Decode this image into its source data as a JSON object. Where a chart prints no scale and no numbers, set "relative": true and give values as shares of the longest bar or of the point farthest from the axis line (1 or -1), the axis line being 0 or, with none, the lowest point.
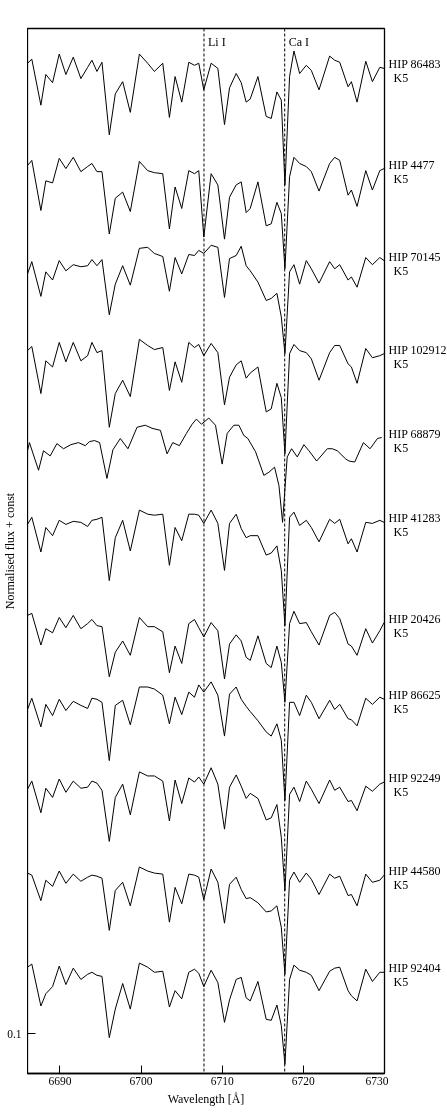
{
  "chart_data": {
    "type": "line",
    "xlabel": "Wavelength [Å]",
    "ylabel": "Normalised flux + const",
    "relative": true,
    "xlim": [
      6686,
      6730
    ],
    "xticks": [
      6690,
      6700,
      6710,
      6720,
      6730
    ],
    "annotations": [
      "0.1"
    ],
    "ref_lines": [
      {
        "axis": "x",
        "value": 6707.75,
        "label": "Li I",
        "color": "#000000",
        "line_style": "dashed"
      },
      {
        "axis": "x",
        "value": 6717.7,
        "label": "Ca I",
        "color": "#000000",
        "line_style": "dashed"
      }
    ],
    "x": [
      6686.0,
      6686.53,
      6687.65,
      6688.26,
      6689.09,
      6689.91,
      6690.73,
      6691.64,
      6692.58,
      6693.41,
      6693.94,
      6694.56,
      6695.18,
      6696.08,
      6696.82,
      6697.73,
      6698.67,
      6699.79,
      6700.81,
      6701.64,
      6702.67,
      6703.49,
      6704.19,
      6705.01,
      6705.88,
      6706.58,
      6707.11,
      6707.73,
      6708.63,
      6709.46,
      6710.28,
      6710.9,
      6711.72,
      6712.34,
      6712.95,
      6713.45,
      6714.4,
      6715.42,
      6716.04,
      6716.74,
      6717.28,
      6717.73,
      6718.3,
      6718.84,
      6719.54,
      6720.36,
      6720.98,
      6721.93,
      6723.24,
      6723.86,
      6724.48,
      6725.51,
      6725.92,
      6726.62,
      6727.69,
      6728.51,
      6729.42,
      6729.95
    ],
    "series": [
      {
        "name": "HIP 86483\nK5",
        "color": "#000000",
        "values": [
          0.988,
          0.992,
          0.947,
          0.977,
          0.969,
          0.997,
          0.977,
          0.994,
          0.973,
          0.984,
          0.991,
          0.98,
          0.989,
          0.918,
          0.958,
          0.97,
          0.94,
          0.997,
          0.988,
          0.98,
          0.988,
          0.935,
          0.975,
          0.95,
          0.989,
          0.986,
          0.988,
          0.962,
          0.988,
          0.983,
          0.928,
          0.964,
          0.978,
          0.969,
          0.95,
          0.953,
          0.975,
          0.936,
          0.934,
          0.96,
          0.952,
          0.869,
          0.975,
          1.0,
          0.978,
          0.986,
          0.981,
          0.962,
          0.995,
          0.991,
          0.989,
          0.965,
          0.97,
          0.95,
          0.99,
          0.97,
          0.984,
          0.983
        ]
      },
      {
        "name": "HIP 4477\nK5",
        "color": "#000000",
        "values": [
          0.888,
          0.893,
          0.844,
          0.873,
          0.871,
          0.895,
          0.885,
          0.896,
          0.882,
          0.887,
          0.89,
          0.882,
          0.882,
          0.821,
          0.856,
          0.862,
          0.843,
          0.892,
          0.883,
          0.881,
          0.88,
          0.826,
          0.867,
          0.846,
          0.883,
          0.88,
          0.883,
          0.818,
          0.88,
          0.869,
          0.816,
          0.857,
          0.869,
          0.872,
          0.842,
          0.846,
          0.872,
          0.829,
          0.831,
          0.852,
          0.841,
          0.787,
          0.877,
          0.896,
          0.89,
          0.887,
          0.882,
          0.863,
          0.89,
          0.896,
          0.893,
          0.859,
          0.864,
          0.848,
          0.883,
          0.864,
          0.883,
          0.885
        ]
      },
      {
        "name": "HIP 70145\nK5",
        "color": "#000000",
        "values": [
          0.782,
          0.794,
          0.76,
          0.784,
          0.776,
          0.795,
          0.785,
          0.791,
          0.789,
          0.79,
          0.796,
          0.79,
          0.796,
          0.742,
          0.772,
          0.79,
          0.771,
          0.807,
          0.808,
          0.802,
          0.799,
          0.765,
          0.798,
          0.782,
          0.801,
          0.8,
          0.805,
          0.802,
          0.81,
          0.808,
          0.759,
          0.797,
          0.8,
          0.809,
          0.79,
          0.785,
          0.774,
          0.756,
          0.758,
          0.763,
          0.74,
          0.704,
          0.784,
          0.791,
          0.772,
          0.795,
          0.787,
          0.773,
          0.794,
          0.787,
          0.791,
          0.776,
          0.779,
          0.769,
          0.798,
          0.791,
          0.798,
          0.795
        ]
      },
      {
        "name": "HIP 102912\nK5",
        "color": "#000000",
        "values": [
          0.707,
          0.711,
          0.665,
          0.697,
          0.691,
          0.715,
          0.696,
          0.715,
          0.697,
          0.702,
          0.715,
          0.705,
          0.707,
          0.632,
          0.665,
          0.678,
          0.662,
          0.718,
          0.712,
          0.708,
          0.71,
          0.668,
          0.696,
          0.676,
          0.715,
          0.71,
          0.713,
          0.702,
          0.714,
          0.705,
          0.654,
          0.681,
          0.693,
          0.697,
          0.68,
          0.685,
          0.691,
          0.647,
          0.65,
          0.675,
          0.661,
          0.606,
          0.704,
          0.713,
          0.707,
          0.705,
          0.699,
          0.678,
          0.705,
          0.712,
          0.712,
          0.694,
          0.691,
          0.675,
          0.709,
          0.7,
          0.702,
          0.704
        ]
      },
      {
        "name": "HIP 68879\nK5",
        "color": "#000000",
        "x": [
          6686.0,
          6686.24,
          6687.36,
          6687.97,
          6688.8,
          6689.62,
          6690.44,
          6691.35,
          6692.29,
          6693.12,
          6693.65,
          6694.27,
          6694.89,
          6695.79,
          6696.53,
          6697.44,
          6698.38,
          6699.5,
          6700.52,
          6701.35,
          6702.38,
          6703.2,
          6703.9,
          6704.72,
          6705.59,
          6706.29,
          6706.82,
          6707.44,
          6708.34,
          6709.17,
          6709.99,
          6710.61,
          6711.43,
          6712.05,
          6712.66,
          6713.16,
          6714.11,
          6715.13,
          6715.75,
          6716.45,
          6716.99,
          6717.44,
          6718.01,
          6718.55,
          6719.25,
          6720.07,
          6720.69,
          6721.64,
          6722.95,
          6723.57,
          6724.19,
          6725.22,
          6725.63,
          6726.33,
          6727.4,
          6728.22,
          6729.13,
          6729.66
        ],
        "values": [
          0.609,
          0.617,
          0.59,
          0.609,
          0.604,
          0.616,
          0.611,
          0.615,
          0.617,
          0.614,
          0.618,
          0.619,
          0.617,
          0.582,
          0.61,
          0.621,
          0.611,
          0.632,
          0.634,
          0.631,
          0.629,
          0.606,
          0.617,
          0.614,
          0.626,
          0.635,
          0.64,
          0.635,
          0.641,
          0.634,
          0.596,
          0.626,
          0.634,
          0.634,
          0.624,
          0.621,
          0.608,
          0.585,
          0.588,
          0.593,
          0.575,
          0.539,
          0.603,
          0.611,
          0.603,
          0.615,
          0.609,
          0.599,
          0.611,
          0.611,
          0.609,
          0.601,
          0.599,
          0.598,
          0.617,
          0.611,
          0.621,
          0.622
        ]
      },
      {
        "name": "HIP 41283\nK5",
        "color": "#000000",
        "values": [
          0.537,
          0.544,
          0.51,
          0.534,
          0.526,
          0.541,
          0.537,
          0.54,
          0.539,
          0.535,
          0.541,
          0.542,
          0.544,
          0.482,
          0.524,
          0.541,
          0.511,
          0.551,
          0.547,
          0.546,
          0.547,
          0.497,
          0.534,
          0.521,
          0.547,
          0.547,
          0.546,
          0.538,
          0.551,
          0.538,
          0.492,
          0.538,
          0.547,
          0.533,
          0.524,
          0.526,
          0.526,
          0.507,
          0.509,
          0.516,
          0.492,
          0.438,
          0.544,
          0.549,
          0.536,
          0.541,
          0.534,
          0.52,
          0.542,
          0.538,
          0.542,
          0.518,
          0.523,
          0.51,
          0.539,
          0.538,
          0.541,
          0.539
        ]
      },
      {
        "name": "HIP 20426\nK5",
        "color": "#000000",
        "values": [
          0.448,
          0.45,
          0.419,
          0.435,
          0.431,
          0.446,
          0.436,
          0.448,
          0.435,
          0.44,
          0.444,
          0.438,
          0.437,
          0.388,
          0.412,
          0.423,
          0.409,
          0.446,
          0.437,
          0.437,
          0.432,
          0.392,
          0.418,
          0.401,
          0.44,
          0.444,
          0.436,
          0.427,
          0.441,
          0.433,
          0.386,
          0.42,
          0.429,
          0.423,
          0.407,
          0.404,
          0.428,
          0.401,
          0.397,
          0.418,
          0.402,
          0.363,
          0.44,
          0.452,
          0.44,
          0.441,
          0.432,
          0.419,
          0.448,
          0.451,
          0.445,
          0.42,
          0.418,
          0.409,
          0.435,
          0.421,
          0.433,
          0.441
        ]
      },
      {
        "name": "HIP 86625\nK5",
        "color": "#000000",
        "values": [
          0.356,
          0.367,
          0.339,
          0.361,
          0.35,
          0.366,
          0.355,
          0.364,
          0.36,
          0.357,
          0.367,
          0.366,
          0.363,
          0.306,
          0.36,
          0.365,
          0.341,
          0.378,
          0.378,
          0.376,
          0.37,
          0.342,
          0.368,
          0.351,
          0.373,
          0.368,
          0.38,
          0.373,
          0.383,
          0.37,
          0.33,
          0.371,
          0.378,
          0.366,
          0.359,
          0.354,
          0.345,
          0.334,
          0.33,
          0.342,
          0.326,
          0.267,
          0.363,
          0.363,
          0.35,
          0.37,
          0.363,
          0.347,
          0.365,
          0.356,
          0.361,
          0.347,
          0.346,
          0.34,
          0.367,
          0.361,
          0.368,
          0.366
        ]
      },
      {
        "name": "HIP 92249\nK5",
        "color": "#000000",
        "values": [
          0.278,
          0.286,
          0.255,
          0.279,
          0.27,
          0.288,
          0.275,
          0.286,
          0.279,
          0.28,
          0.286,
          0.284,
          0.277,
          0.227,
          0.27,
          0.283,
          0.253,
          0.295,
          0.291,
          0.291,
          0.286,
          0.247,
          0.287,
          0.264,
          0.289,
          0.285,
          0.29,
          0.283,
          0.299,
          0.283,
          0.239,
          0.28,
          0.292,
          0.281,
          0.269,
          0.274,
          0.269,
          0.248,
          0.25,
          0.263,
          0.231,
          0.179,
          0.273,
          0.28,
          0.266,
          0.286,
          0.278,
          0.264,
          0.287,
          0.277,
          0.28,
          0.266,
          0.267,
          0.257,
          0.281,
          0.276,
          0.283,
          0.285
        ]
      },
      {
        "name": "HIP 44580\nK5",
        "color": "#000000",
        "values": [
          0.196,
          0.194,
          0.169,
          0.189,
          0.183,
          0.198,
          0.186,
          0.195,
          0.188,
          0.192,
          0.194,
          0.193,
          0.191,
          0.14,
          0.179,
          0.187,
          0.164,
          0.202,
          0.198,
          0.196,
          0.195,
          0.148,
          0.182,
          0.166,
          0.195,
          0.194,
          0.192,
          0.17,
          0.2,
          0.187,
          0.147,
          0.185,
          0.192,
          0.18,
          0.171,
          0.172,
          0.167,
          0.158,
          0.159,
          0.164,
          0.143,
          0.097,
          0.189,
          0.197,
          0.187,
          0.196,
          0.19,
          0.175,
          0.195,
          0.191,
          0.193,
          0.174,
          0.175,
          0.164,
          0.195,
          0.187,
          0.189,
          0.194
        ]
      },
      {
        "name": "HIP 92404\nK5",
        "color": "#000000",
        "values": [
          0.104,
          0.107,
          0.066,
          0.078,
          0.085,
          0.105,
          0.087,
          0.103,
          0.092,
          0.097,
          0.099,
          0.096,
          0.095,
          0.035,
          0.063,
          0.088,
          0.063,
          0.108,
          0.104,
          0.099,
          0.1,
          0.065,
          0.081,
          0.073,
          0.099,
          0.102,
          0.098,
          0.085,
          0.101,
          0.089,
          0.05,
          0.072,
          0.092,
          0.094,
          0.074,
          0.071,
          0.09,
          0.053,
          0.052,
          0.067,
          0.047,
          0.009,
          0.092,
          0.106,
          0.101,
          0.099,
          0.096,
          0.081,
          0.1,
          0.103,
          0.104,
          0.081,
          0.076,
          0.071,
          0.102,
          0.09,
          0.099,
          0.099
        ]
      }
    ]
  }
}
